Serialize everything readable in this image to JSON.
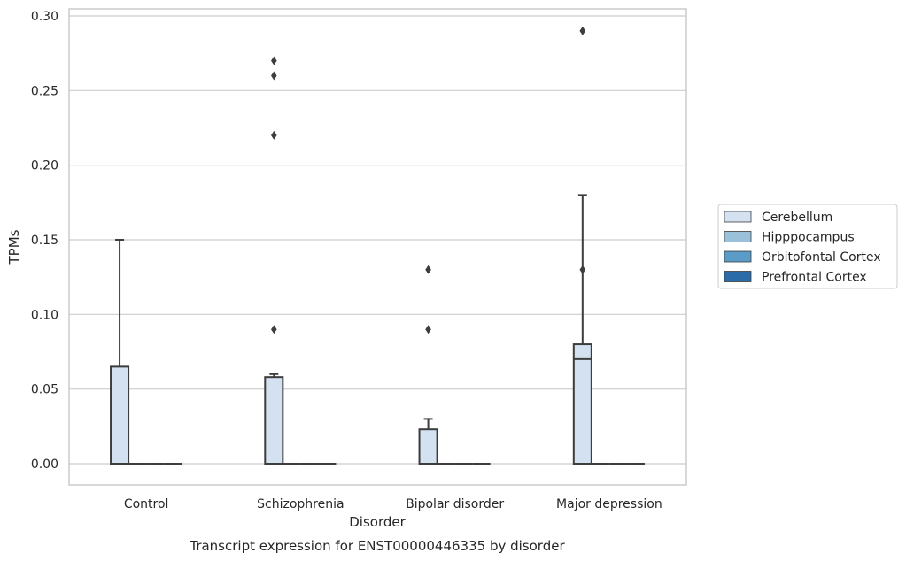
{
  "chart_data": {
    "type": "box",
    "xlabel": "Disorder",
    "ylabel": "TPMs",
    "caption": "Transcript expression for ENST00000446335 by disorder",
    "ylim": [
      -0.014,
      0.305
    ],
    "yticks": [
      "0.00",
      "0.05",
      "0.10",
      "0.15",
      "0.20",
      "0.25",
      "0.30"
    ],
    "grid": "horizontal",
    "legend_position": "right",
    "categories": [
      "Control",
      "Schizophrenia",
      "Bipolar disorder",
      "Major depression"
    ],
    "series": [
      {
        "name": "Cerebellum",
        "color": "#d3e1f0",
        "boxes": [
          {
            "min": 0.0,
            "q1": 0.0,
            "median": 0.0,
            "q3": 0.065,
            "max": 0.15,
            "outliers": []
          },
          {
            "min": 0.0,
            "q1": 0.0,
            "median": 0.0,
            "q3": 0.058,
            "max": 0.06,
            "outliers": [
              0.27,
              0.26,
              0.22,
              0.09
            ]
          },
          {
            "min": 0.0,
            "q1": 0.0,
            "median": 0.0,
            "q3": 0.023,
            "max": 0.03,
            "outliers": [
              0.13,
              0.09
            ]
          },
          {
            "min": 0.0,
            "q1": 0.0,
            "median": 0.07,
            "q3": 0.08,
            "max": 0.18,
            "outliers": [
              0.29,
              0.13
            ]
          }
        ]
      },
      {
        "name": "Hipppocampus",
        "color": "#9ac0da",
        "boxes": [
          {
            "min": 0.0,
            "q1": 0.0,
            "median": 0.0,
            "q3": 0.0,
            "max": 0.0,
            "outliers": []
          },
          {
            "min": 0.0,
            "q1": 0.0,
            "median": 0.0,
            "q3": 0.0,
            "max": 0.0,
            "outliers": []
          },
          {
            "min": 0.0,
            "q1": 0.0,
            "median": 0.0,
            "q3": 0.0,
            "max": 0.0,
            "outliers": []
          },
          {
            "min": 0.0,
            "q1": 0.0,
            "median": 0.0,
            "q3": 0.0,
            "max": 0.0,
            "outliers": []
          }
        ]
      },
      {
        "name": "Orbitofontal Cortex",
        "color": "#5b9bc8",
        "boxes": [
          {
            "min": 0.0,
            "q1": 0.0,
            "median": 0.0,
            "q3": 0.0,
            "max": 0.0,
            "outliers": []
          },
          {
            "min": 0.0,
            "q1": 0.0,
            "median": 0.0,
            "q3": 0.0,
            "max": 0.0,
            "outliers": []
          },
          {
            "min": 0.0,
            "q1": 0.0,
            "median": 0.0,
            "q3": 0.0,
            "max": 0.0,
            "outliers": []
          },
          {
            "min": 0.0,
            "q1": 0.0,
            "median": 0.0,
            "q3": 0.0,
            "max": 0.0,
            "outliers": []
          }
        ]
      },
      {
        "name": "Prefrontal Cortex",
        "color": "#2b6ca8",
        "boxes": [
          {
            "min": 0.0,
            "q1": 0.0,
            "median": 0.0,
            "q3": 0.0,
            "max": 0.0,
            "outliers": []
          },
          {
            "min": 0.0,
            "q1": 0.0,
            "median": 0.0,
            "q3": 0.0,
            "max": 0.0,
            "outliers": []
          },
          {
            "min": 0.0,
            "q1": 0.0,
            "median": 0.0,
            "q3": 0.0,
            "max": 0.0,
            "outliers": []
          },
          {
            "min": 0.0,
            "q1": 0.0,
            "median": 0.0,
            "q3": 0.0,
            "max": 0.0,
            "outliers": []
          }
        ]
      }
    ]
  }
}
